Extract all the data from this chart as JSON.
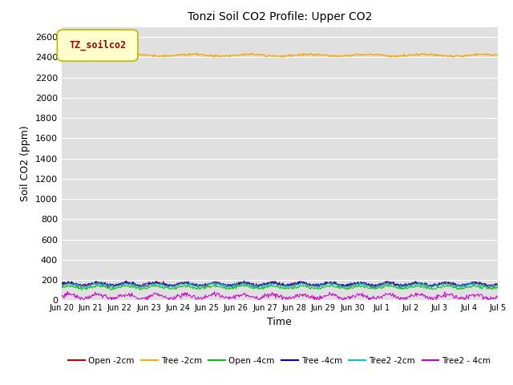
{
  "title": "Tonzi Soil CO2 Profile: Upper CO2",
  "ylabel": "Soil CO2 (ppm)",
  "xlabel": "Time",
  "ylim": [
    0,
    2700
  ],
  "yticks": [
    0,
    200,
    400,
    600,
    800,
    1000,
    1200,
    1400,
    1600,
    1800,
    2000,
    2200,
    2400,
    2600
  ],
  "bg_color": "#e0e0e0",
  "legend_label": "TZ_soilco2",
  "legend_box_color": "#ffffcc",
  "legend_text_color": "#aa0000",
  "series_colors": {
    "Open -2cm": "#cc0000",
    "Tree -2cm": "#ffaa00",
    "Open -4cm": "#00cc00",
    "Tree -4cm": "#0000cc",
    "Tree2 -2cm": "#00cccc",
    "Tree2 - 4cm": "#cc00cc"
  },
  "tick_labels": [
    "Jun 20",
    "Jun 21",
    "Jun 22",
    "Jun 23",
    "Jun 24",
    "Jun 25",
    "Jun 26",
    "Jun 27",
    "Jun 28",
    "Jun 29",
    "Jun 30",
    "Jul 1",
    "Jul 2",
    "Jul 3",
    "Jul 4",
    "Jul 5"
  ],
  "n_points": 720,
  "tree2cm_base": 2420,
  "tree2cm_noise": 12,
  "open2cm_base": 155,
  "open2cm_noise": 22,
  "tree2cm_sensor_base": 148,
  "tree2cm_sensor_noise": 18,
  "open4cm_base": 128,
  "open4cm_noise": 18,
  "tree4cm_base": 162,
  "tree4cm_noise": 18,
  "tree2_4cm_base": 38,
  "tree2_4cm_noise": 28
}
